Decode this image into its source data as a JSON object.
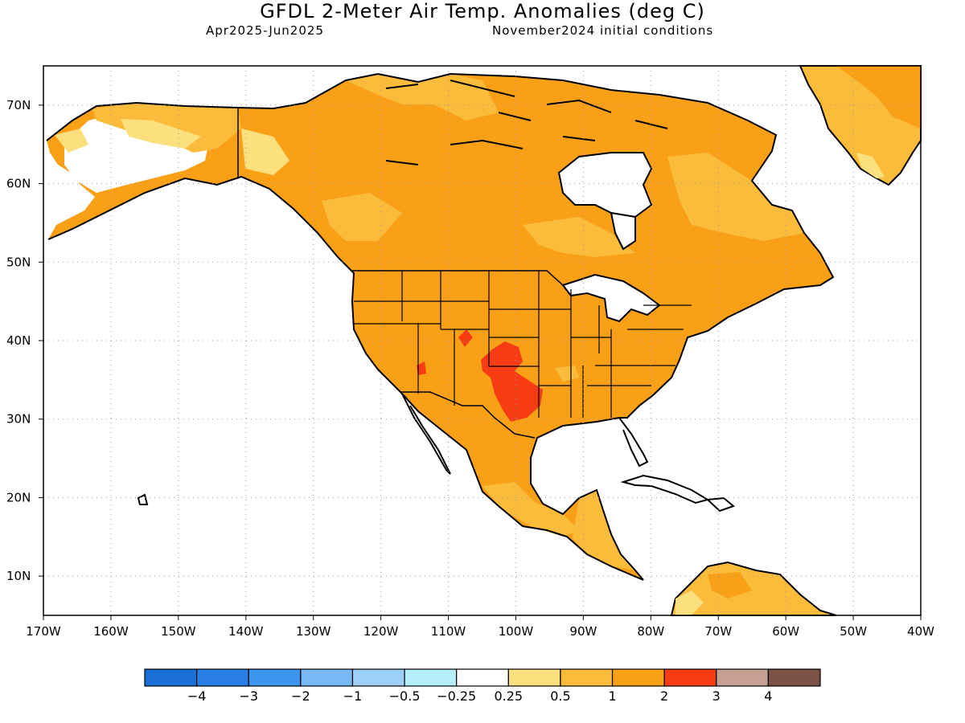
{
  "title": "GFDL 2-Meter Air Temp. Anomalies (deg C)",
  "period": "Apr2025-Jun2025",
  "init": "November2024 initial conditions",
  "map": {
    "lat_labels": [
      "70N",
      "60N",
      "50N",
      "40N",
      "30N",
      "20N",
      "10N"
    ],
    "lon_labels": [
      "170W",
      "160W",
      "150W",
      "140W",
      "130W",
      "120W",
      "110W",
      "100W",
      "90W",
      "80W",
      "70W",
      "60W",
      "50W",
      "40W"
    ],
    "lat_range": [
      5,
      75
    ],
    "lon_range": [
      -170,
      -40
    ],
    "grid": "dotted",
    "colors": {
      "land_outline": "#000000",
      "ocean": "#ffffff"
    }
  },
  "colorbar": {
    "colors": [
      "#1a6fd6",
      "#2a7fe6",
      "#3c96f0",
      "#78b9f5",
      "#9cd0f7",
      "#b4eefa",
      "#ffffff",
      "#fde07e",
      "#fbbc3c",
      "#f9a017",
      "#f73b13",
      "#c6a094",
      "#7b5245"
    ],
    "labels": [
      "-4",
      "-3",
      "-2",
      "-1",
      "-0.5",
      "-0.25",
      "0.25",
      "0.5",
      "1",
      "2",
      "3",
      "4"
    ]
  }
}
